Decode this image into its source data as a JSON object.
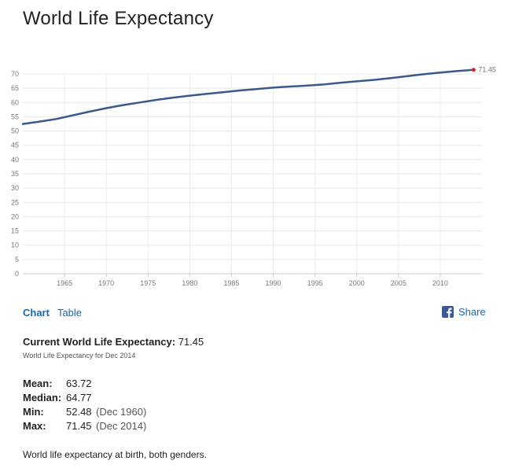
{
  "page": {
    "title": "World Life Expectancy"
  },
  "chart_data": {
    "type": "line",
    "title": "World Life Expectancy",
    "xlabel": "",
    "ylabel": "",
    "xlim": [
      1960,
      2015
    ],
    "ylim": [
      0,
      70
    ],
    "yticks": [
      "0",
      "5",
      "10",
      "15",
      "20",
      "25",
      "30",
      "35",
      "40",
      "45",
      "50",
      "55",
      "60",
      "65",
      "70"
    ],
    "xticks": [
      "1965",
      "1970",
      "1975",
      "1980",
      "1985",
      "1990",
      "1995",
      "2000",
      "2005",
      "2010"
    ],
    "grid": true,
    "series": [
      {
        "name": "World Life Expectancy",
        "color": "#3a5a8c",
        "x": [
          1960,
          1962,
          1964,
          1966,
          1968,
          1970,
          1972,
          1974,
          1976,
          1978,
          1980,
          1982,
          1984,
          1986,
          1988,
          1990,
          1992,
          1994,
          1996,
          1998,
          2000,
          2002,
          2004,
          2006,
          2008,
          2010,
          2012,
          2014
        ],
        "values": [
          52.48,
          53.3,
          54.2,
          55.5,
          56.8,
          58.0,
          59.1,
          60.0,
          60.9,
          61.7,
          62.4,
          63.0,
          63.6,
          64.2,
          64.7,
          65.2,
          65.6,
          65.9,
          66.3,
          66.9,
          67.4,
          67.9,
          68.5,
          69.2,
          69.9,
          70.5,
          71.0,
          71.45
        ]
      }
    ],
    "end_label": "71.45",
    "end_marker_color": "#d62728"
  },
  "tabs": {
    "chart": "Chart",
    "table": "Table"
  },
  "share": {
    "label": "Share",
    "icon": "facebook-icon",
    "color": "#3b5998"
  },
  "current": {
    "label": "Current World Life Expectancy:",
    "value": "71.45",
    "note": "World Life Expectancy for Dec 2014"
  },
  "stats": {
    "mean": {
      "label": "Mean:",
      "value": "63.72"
    },
    "median": {
      "label": "Median:",
      "value": "64.77"
    },
    "min": {
      "label": "Min:",
      "value": "52.48",
      "date": "(Dec 1960)"
    },
    "max": {
      "label": "Max:",
      "value": "71.45",
      "date": "(Dec 2014)"
    }
  },
  "description": "World life expectancy at birth, both genders."
}
